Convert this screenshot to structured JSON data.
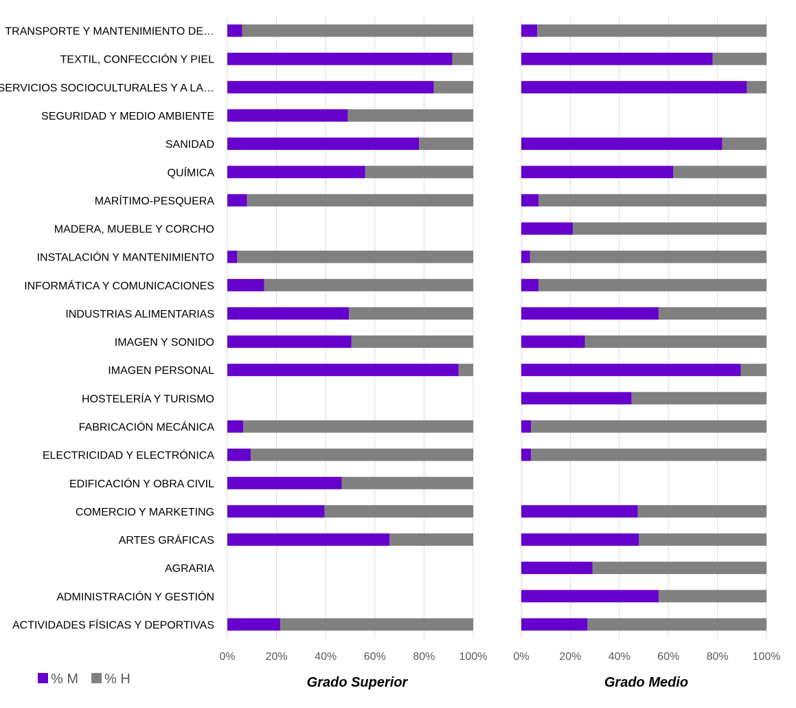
{
  "chart_data": {
    "type": "bar",
    "orientation": "horizontal",
    "stacked": "percent",
    "legend": {
      "position": "bottom-left",
      "entries": [
        {
          "name": "% M",
          "color": "#6600CC"
        },
        {
          "name": "% H",
          "color": "#808080"
        }
      ]
    },
    "grid": true,
    "categories": [
      "TRANSPORTE Y MANTENIMIENTO DE…",
      "TEXTIL, CONFECCIÓN Y PIEL",
      "SERVICIOS SOCIOCULTURALES Y A LA…",
      "SEGURIDAD Y MEDIO AMBIENTE",
      "SANIDAD",
      "QUÍMICA",
      "MARÍTIMO-PESQUERA",
      "MADERA, MUEBLE Y CORCHO",
      "INSTALACIÓN Y MANTENIMIENTO",
      "INFORMÁTICA Y COMUNICACIONES",
      "INDUSTRIAS ALIMENTARIAS",
      "IMAGEN Y SONIDO",
      "IMAGEN PERSONAL",
      "HOSTELERÍA Y TURISMO",
      "FABRICACIÓN MECÁNICA",
      "ELECTRICIDAD Y ELECTRÓNICA",
      "EDIFICACIÓN Y OBRA CIVIL",
      "COMERCIO Y MARKETING",
      "ARTES GRÁFICAS",
      "AGRARIA",
      "ADMINISTRACIÓN Y GESTIÓN",
      "ACTIVIDADES FÍSICAS Y DEPORTIVAS"
    ],
    "xticks": [
      "0%",
      "20%",
      "40%",
      "60%",
      "80%",
      "100%"
    ],
    "xlim": [
      0,
      100
    ],
    "panels": [
      {
        "title": "Grado Superior",
        "pct_m": [
          6,
          91.5,
          84,
          49,
          78,
          56,
          8,
          null,
          4,
          15,
          49.5,
          50.5,
          94,
          null,
          6.5,
          9.5,
          46.5,
          39.5,
          66,
          null,
          null,
          21.5
        ],
        "pct_h": [
          94,
          8.5,
          16,
          51,
          22,
          44,
          92,
          null,
          96,
          85,
          50.5,
          49.5,
          6,
          null,
          93.5,
          90.5,
          53.5,
          60.5,
          34,
          null,
          null,
          78.5
        ]
      },
      {
        "title": "Grado Medio",
        "pct_m": [
          6.5,
          78,
          92,
          null,
          82,
          62,
          7,
          21,
          3.5,
          7,
          56,
          26,
          89.5,
          45,
          4,
          4,
          null,
          47.5,
          48,
          29,
          56,
          27
        ],
        "pct_h": [
          93.5,
          22,
          8,
          null,
          18,
          38,
          93,
          79,
          96.5,
          93,
          44,
          74,
          10.5,
          55,
          96,
          96,
          null,
          52.5,
          52,
          71,
          44,
          73
        ]
      }
    ]
  }
}
